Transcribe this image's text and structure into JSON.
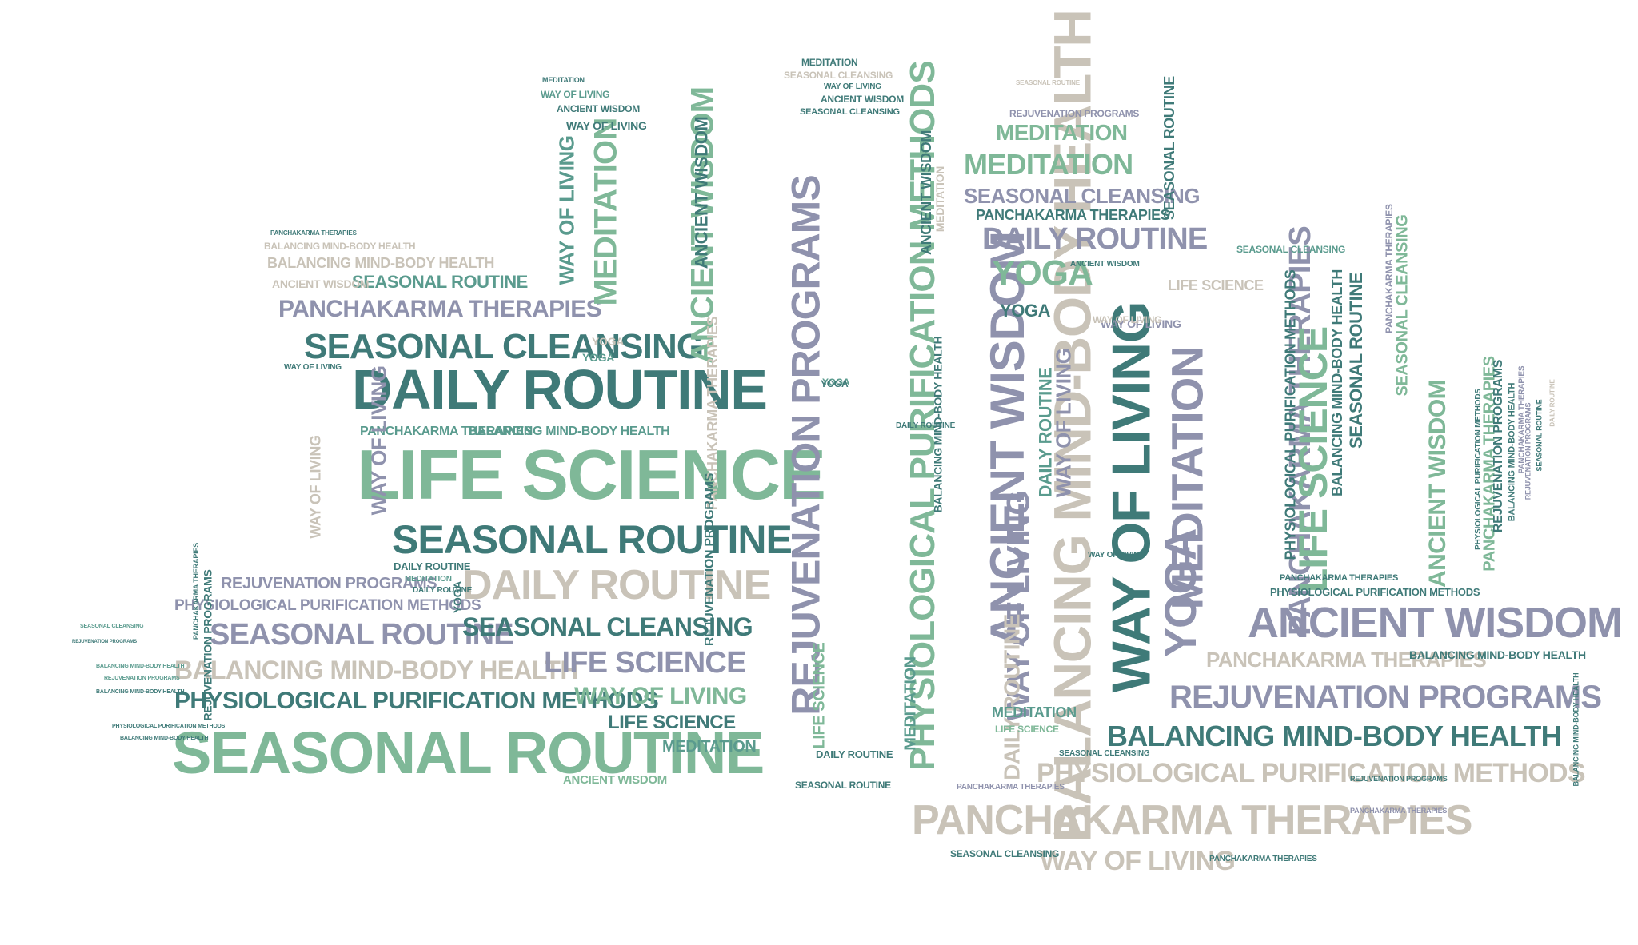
{
  "palette": {
    "dark_teal": "#3f7a78",
    "mint": "#7fb898",
    "slate": "#8f92ad",
    "stone": "#c9c3b8",
    "sea_green": "#5a9b8e"
  },
  "words": {
    "seasonal_routine": "SEASONAL ROUTINE",
    "seasonal_cleansing": "SEASONAL CLEANSING",
    "daily_routine": "DAILY ROUTINE",
    "life_science": "LIFE SCIENCE",
    "ancient_wisdom": "ANCIENT WISDOM",
    "way_of_living": "WAY OF LIVING",
    "meditation": "MEDITATION",
    "yoga": "YOGA",
    "panchakarma_therapies": "PANCHAKARMA THERAPIES",
    "rejuvenation_programs": "REJUVENATION PROGRAMS",
    "balancing_mind_body_health": "BALANCING MIND-BODY HEALTH",
    "physiological_purification_methods": "PHYSIOLOGICAL PURIFICATION METHODS"
  }
}
